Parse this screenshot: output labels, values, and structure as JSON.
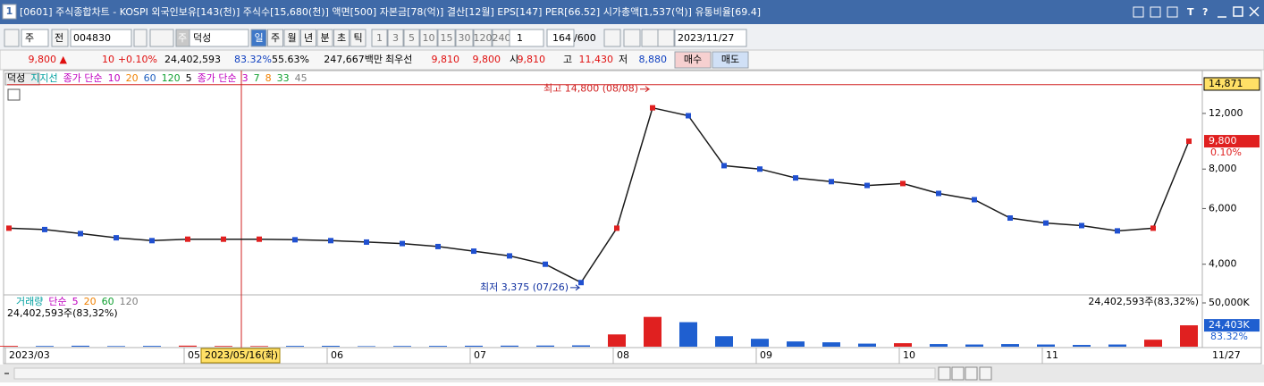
{
  "window": {
    "number": "1",
    "title": "[0601] 주식종합차트 - KOSPI 외국인보유[143(천)] 주식수[15,680(천)] 액면[500] 자본금[78(억)] 결산[12월] EPS[147] PER[66.52] 시가총액[1,537(억)] 유통비율[69.4]",
    "buttons": [
      "T",
      "?"
    ]
  },
  "toolbar": {
    "market": "주",
    "prev": "전",
    "code": "004830",
    "stock_type": "주",
    "stock_name": "덕성",
    "periods": [
      "일",
      "주",
      "월",
      "년",
      "분",
      "초",
      "틱"
    ],
    "intervals": [
      "1",
      "3",
      "5",
      "10",
      "15",
      "30",
      "120",
      "240"
    ],
    "unit": "1",
    "count": "164",
    "max_count": "/600",
    "date": "2023/11/27"
  },
  "info": {
    "price": "9,800 ▲",
    "change": "10",
    "change_rate": "+0.10%",
    "volume": "24,402,593",
    "volume_rate": "83.32%",
    "turnover": "55.63%",
    "amount": "247,667백만",
    "best_label": "최우선",
    "ask": "9,810",
    "bid": "9,800",
    "open_label": "시",
    "open": "9,810",
    "high_label": "고",
    "high": "11,430",
    "low_label": "저",
    "low": "8,880",
    "buy": "매수",
    "sell": "매도"
  },
  "legend": {
    "name": "덕성",
    "support": "지지선",
    "groups": [
      {
        "label": "종가 단순",
        "items": [
          {
            "text": "10",
            "color": "#c000c0"
          },
          {
            "text": "20",
            "color": "#f08000"
          },
          {
            "text": "60",
            "color": "#2060c0"
          },
          {
            "text": "120",
            "color": "#10a030"
          },
          {
            "text": "5",
            "color": "#000000"
          }
        ]
      },
      {
        "label": "종가 단순",
        "items": [
          {
            "text": "3",
            "color": "#c000c0"
          },
          {
            "text": "7",
            "color": "#10a030"
          },
          {
            "text": "8",
            "color": "#f08000"
          },
          {
            "text": "33",
            "color": "#10a030"
          },
          {
            "text": "45",
            "color": "#808080"
          }
        ]
      }
    ]
  },
  "volume_legend": {
    "label": "거래량",
    "method": "단순",
    "items": [
      {
        "text": "5",
        "color": "#c000c0"
      },
      {
        "text": "20",
        "color": "#f08000"
      },
      {
        "text": "60",
        "color": "#10a030"
      },
      {
        "text": "120",
        "color": "#808080"
      }
    ],
    "summary": "24,402,593주(83,32%)",
    "summary_right": "24,402,593주(83,32%)"
  },
  "cursor_date": "2023/05/16(화)",
  "chart_data": {
    "type": "line",
    "log_scale": true,
    "categories": [
      "2023/03",
      null,
      null,
      null,
      null,
      "05",
      null,
      null,
      null,
      "06",
      null,
      null,
      null,
      "07",
      null,
      null,
      null,
      "08",
      null,
      null,
      null,
      "09",
      null,
      null,
      null,
      "10",
      null,
      null,
      null,
      "11",
      null,
      null,
      null,
      "11/27"
    ],
    "series": [
      {
        "values": [
          5200,
          5150,
          5000,
          4850,
          4750,
          4800,
          4800,
          4800,
          4780,
          4750,
          4700,
          4650,
          4550,
          4400,
          4250,
          4000,
          3500,
          5200,
          12500,
          11800,
          8200,
          8000,
          7500,
          7300,
          7100,
          7200,
          6700,
          6400,
          5600,
          5400,
          5300,
          5100,
          5200,
          9800
        ],
        "color": "#1a1a1a"
      },
      {
        "values": [
          900,
          800,
          1100,
          700,
          900,
          1200,
          800,
          700,
          900,
          1000,
          600,
          800,
          900,
          1100,
          1200,
          1300,
          1500,
          14000,
          34000,
          28000,
          12000,
          9000,
          6000,
          5000,
          3500,
          4000,
          3000,
          2500,
          3000,
          2500,
          2000,
          2500,
          8000,
          24403
        ],
        "axis": "y2",
        "color": "#e02020",
        "down_color": "#1f5fd0"
      }
    ],
    "ylim": [
      3200,
      16500
    ],
    "yticks": [
      {
        "value": 12000,
        "label": "12,000"
      },
      {
        "value": 8000,
        "label": "8,000"
      },
      {
        "value": 6000,
        "label": "6,000"
      },
      {
        "value": 4000,
        "label": "4,000"
      }
    ],
    "y2lim": [
      0,
      50000
    ],
    "y2ticks": [
      {
        "value": 50000,
        "label": "50,000K"
      }
    ],
    "annotations": [
      {
        "label": "최고 14,800 (08/08)",
        "value": 14800
      },
      {
        "label": "최저 3,375 (07/26)",
        "value": 3375
      }
    ],
    "top_marker": {
      "value": 14871,
      "label": "14,871"
    },
    "last_marker": {
      "value": 9800,
      "label": "9,800",
      "sub": "0.10%"
    },
    "volume_marker": {
      "value": 24403,
      "label": "24,403K",
      "sub": "83.32%"
    }
  }
}
